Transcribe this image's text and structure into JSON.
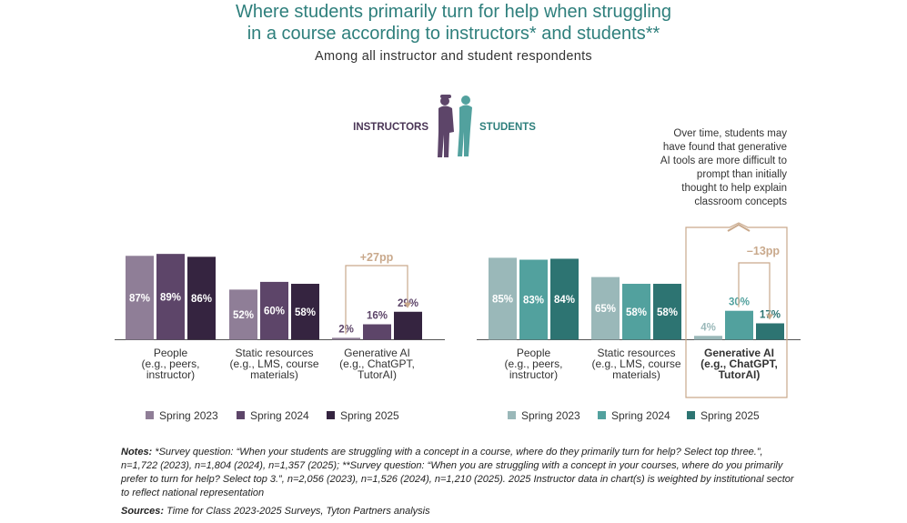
{
  "title_line1": "Where students primarily turn for help when struggling",
  "title_line2": "in a course according to instructors* and students**",
  "subtitle": "Among all instructor and student respondents",
  "colors": {
    "instr_2023": "#8f7e97",
    "instr_2024": "#5d4569",
    "instr_2025": "#352440",
    "stud_2023": "#9ab8b9",
    "stud_2024": "#52a19e",
    "stud_2025": "#2d7472",
    "accent": "#c9a98c",
    "title": "#2e7f7c"
  },
  "chart_data": [
    {
      "type": "bar",
      "panel_label": "INSTRUCTORS",
      "categories": [
        "People\n(e.g., peers,\ninstructor)",
        "Static resources\n(e.g., LMS, course\nmaterials)",
        "Generative AI\n(e.g., ChatGPT,\nTutorAI)"
      ],
      "series": [
        {
          "name": "Spring 2023",
          "values": [
            87,
            52,
            2
          ]
        },
        {
          "name": "Spring 2024",
          "values": [
            89,
            60,
            16
          ]
        },
        {
          "name": "Spring 2025",
          "values": [
            86,
            58,
            29
          ]
        }
      ],
      "value_suffix": "%",
      "ylim": [
        0,
        100
      ],
      "annotation": "+27pp",
      "legend_position": "bottom"
    },
    {
      "type": "bar",
      "panel_label": "STUDENTS",
      "categories": [
        "People\n(e.g., peers,\ninstructor)",
        "Static resources\n(e.g., LMS, course\nmaterials)",
        "Generative AI\n(e.g., ChatGPT,\nTutorAI)"
      ],
      "series": [
        {
          "name": "Spring 2023",
          "values": [
            85,
            65,
            4
          ]
        },
        {
          "name": "Spring 2024",
          "values": [
            83,
            58,
            30
          ]
        },
        {
          "name": "Spring 2025",
          "values": [
            84,
            58,
            17
          ]
        }
      ],
      "value_suffix": "%",
      "ylim": [
        0,
        100
      ],
      "annotation": "–13pp",
      "callout": "Over time, students may\nhave found that generative\nAI tools are more difficult to\nprompt than initially\nthought to help explain\nclassroom concepts",
      "legend_position": "bottom"
    }
  ],
  "notes_label": "Notes:",
  "notes_text": " *Survey question: “When your students are struggling with a concept in a course, where do they primarily turn for help? Select top three.”, n=1,722 (2023), n=1,804 (2024), n=1,357 (2025); **Survey question: “When you are struggling with a concept in your courses, where do you primarily prefer to turn for help? Select top 3.”, n=2,056 (2023), n=1,526 (2024), n=1,210 (2025). 2025 Instructor data in chart(s) is weighted by institutional sector to reflect national representation",
  "sources_label": "Sources:",
  "sources_text": " Time for Class 2023-2025 Surveys, Tyton Partners analysis"
}
